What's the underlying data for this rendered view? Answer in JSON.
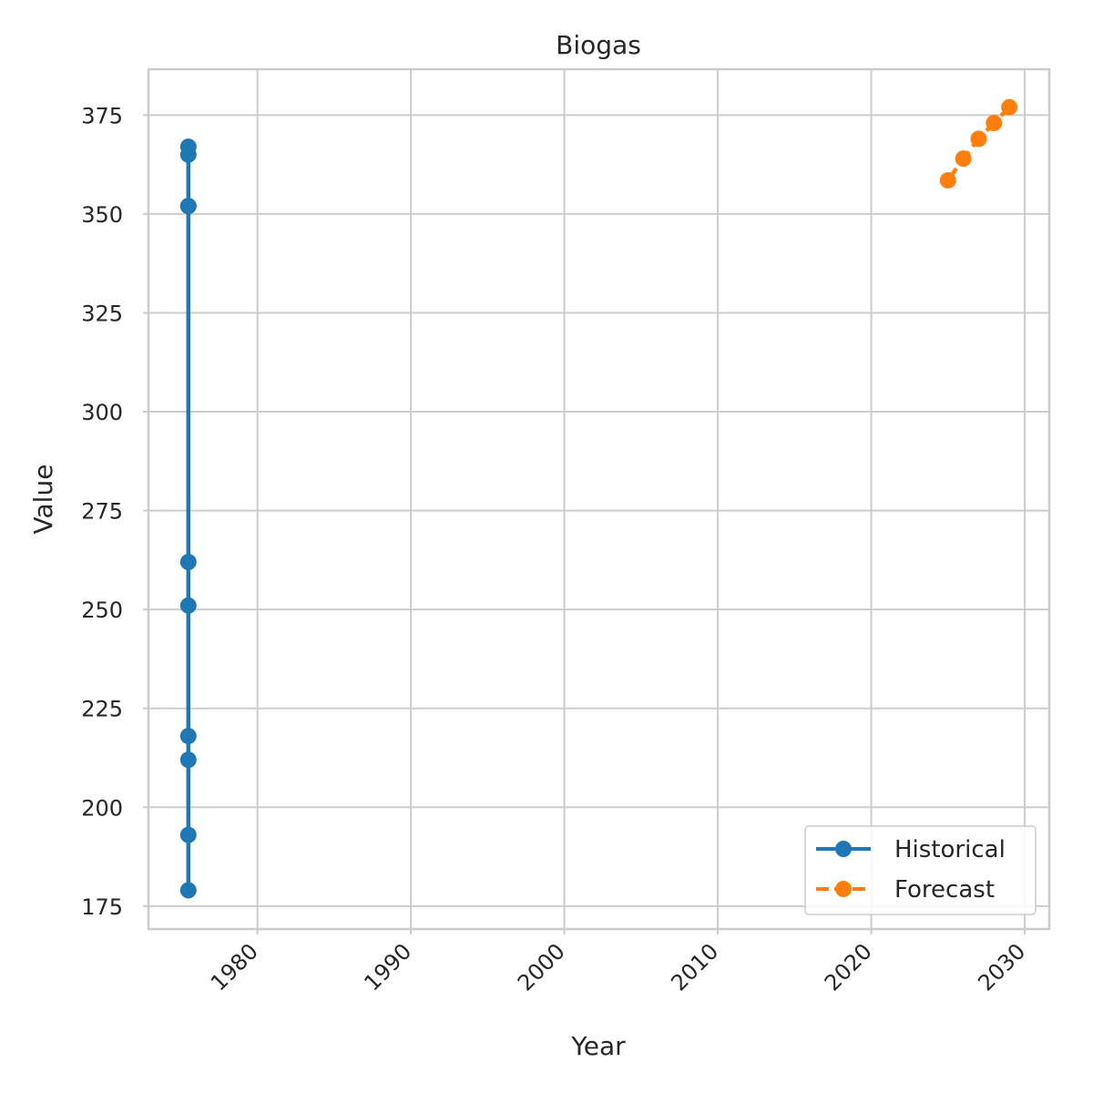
{
  "chart_data": {
    "type": "line",
    "title": "Biogas",
    "xlabel": "Year",
    "ylabel": "Value",
    "xlim": [
      1972.9,
      2031.6
    ],
    "ylim": [
      169.2,
      386.6
    ],
    "x_ticks": [
      1980,
      1990,
      2000,
      2010,
      2020,
      2030
    ],
    "y_ticks": [
      175,
      200,
      225,
      250,
      275,
      300,
      325,
      350,
      375
    ],
    "grid": true,
    "legend_position": "bottom-right",
    "series": [
      {
        "name": "Historical",
        "color": "#1f77b4",
        "line_style": "solid",
        "marker": "circle",
        "x": [
          1975.5,
          1975.5,
          1975.5,
          1975.5,
          1975.5,
          1975.5,
          1975.5,
          1975.5,
          1975.5,
          1975.5
        ],
        "y": [
          179,
          193,
          212,
          218,
          251,
          262,
          352,
          352,
          365,
          367
        ]
      },
      {
        "name": "Forecast",
        "color": "#ff7f0e",
        "line_style": "dashed",
        "marker": "circle",
        "x": [
          2025,
          2026,
          2027,
          2028,
          2029
        ],
        "y": [
          358.5,
          364,
          369,
          373,
          377
        ]
      }
    ]
  }
}
